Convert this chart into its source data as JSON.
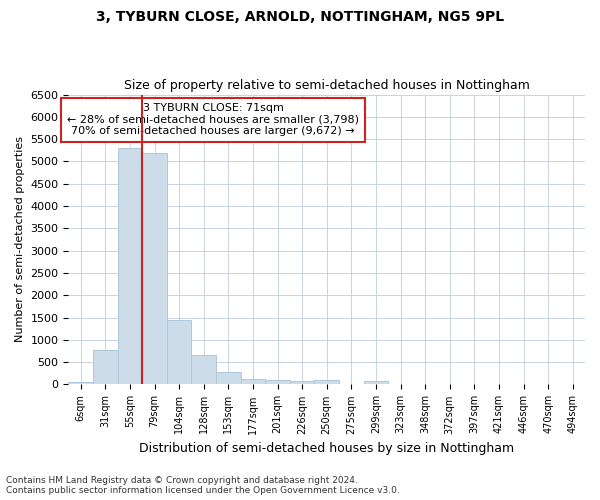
{
  "title": "3, TYBURN CLOSE, ARNOLD, NOTTINGHAM, NG5 9PL",
  "subtitle": "Size of property relative to semi-detached houses in Nottingham",
  "xlabel": "Distribution of semi-detached houses by size in Nottingham",
  "ylabel": "Number of semi-detached properties",
  "footer_line1": "Contains HM Land Registry data © Crown copyright and database right 2024.",
  "footer_line2": "Contains public sector information licensed under the Open Government Licence v3.0.",
  "property_label": "3 TYBURN CLOSE: 71sqm",
  "pct_smaller": 28,
  "pct_smaller_count": 3798,
  "pct_larger": 70,
  "pct_larger_count": 9672,
  "bar_color": "#ccdce8",
  "bar_edge_color": "#aec8db",
  "highlight_line_color": "#cc2222",
  "annotation_box_color": "#ffffff",
  "annotation_border_color": "#cc2222",
  "background_color": "#ffffff",
  "grid_color": "#c8d4e0",
  "categories": [
    "6sqm",
    "31sqm",
    "55sqm",
    "79sqm",
    "104sqm",
    "128sqm",
    "153sqm",
    "177sqm",
    "201sqm",
    "226sqm",
    "250sqm",
    "275sqm",
    "299sqm",
    "323sqm",
    "348sqm",
    "372sqm",
    "397sqm",
    "421sqm",
    "446sqm",
    "470sqm",
    "494sqm"
  ],
  "values": [
    50,
    780,
    5300,
    5200,
    1450,
    650,
    280,
    130,
    90,
    80,
    100,
    0,
    80,
    0,
    0,
    0,
    0,
    0,
    0,
    0,
    0
  ],
  "ylim": [
    0,
    6500
  ],
  "yticks": [
    0,
    500,
    1000,
    1500,
    2000,
    2500,
    3000,
    3500,
    4000,
    4500,
    5000,
    5500,
    6000,
    6500
  ],
  "property_bin_index": 2,
  "red_line_x": 2.5
}
